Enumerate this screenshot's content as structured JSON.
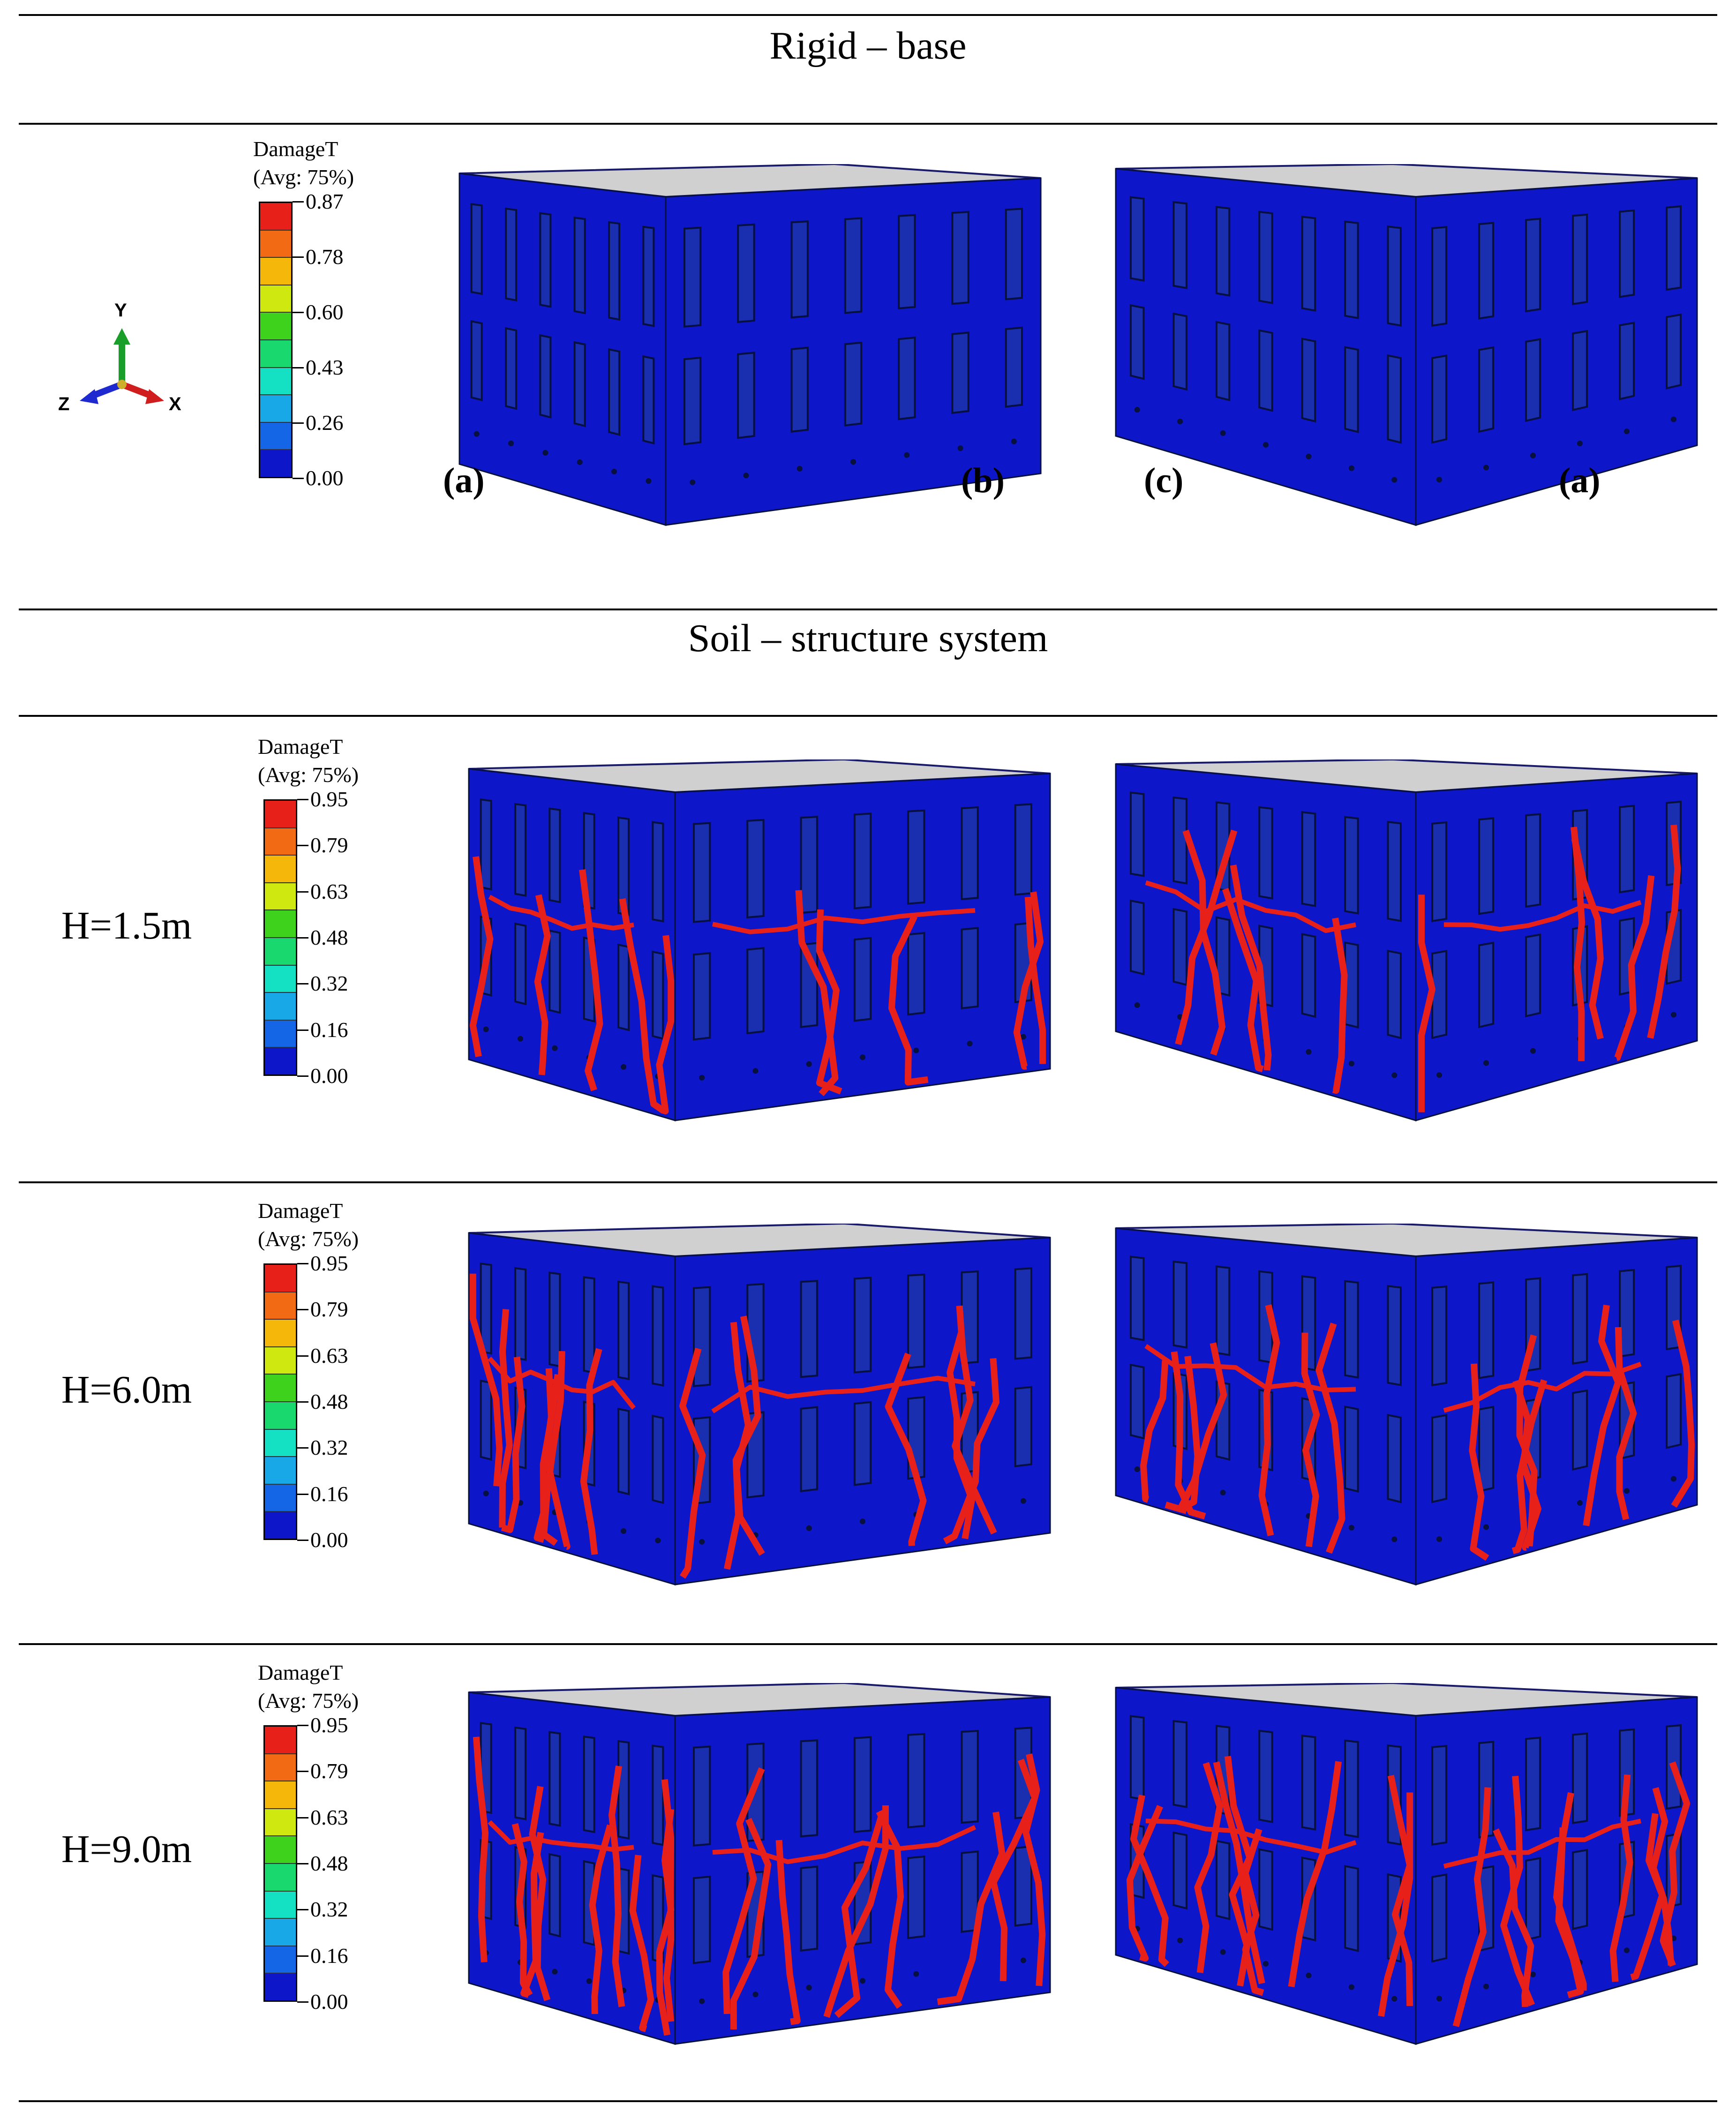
{
  "sections": {
    "rigid_title": "Rigid – base",
    "soil_title": "Soil – structure system"
  },
  "axes_triad": {
    "y": "Y",
    "z": "Z",
    "x": "X"
  },
  "sublabels": {
    "a": "(a)",
    "b": "(b)",
    "c": "(c)",
    "a2": "(a)"
  },
  "legend_title": "DamageT",
  "legend_avg": "(Avg: 75%)",
  "legend_colors": [
    "#e8201a",
    "#f26a14",
    "#f5b70a",
    "#cfe80f",
    "#3fd21c",
    "#18d86e",
    "#14e0c4",
    "#18a8e8",
    "#1566e6",
    "#0d16c8"
  ],
  "legends": {
    "rigid": [
      "0.87",
      "0.78",
      "0.60",
      "0.43",
      "0.26",
      "0.00"
    ],
    "soil": [
      "0.95",
      "0.79",
      "0.63",
      "0.48",
      "0.32",
      "0.16",
      "0.00"
    ]
  },
  "rows": {
    "h15": "H=1.5m",
    "h60": "H=6.0m",
    "h90": "H=9.0m"
  }
}
